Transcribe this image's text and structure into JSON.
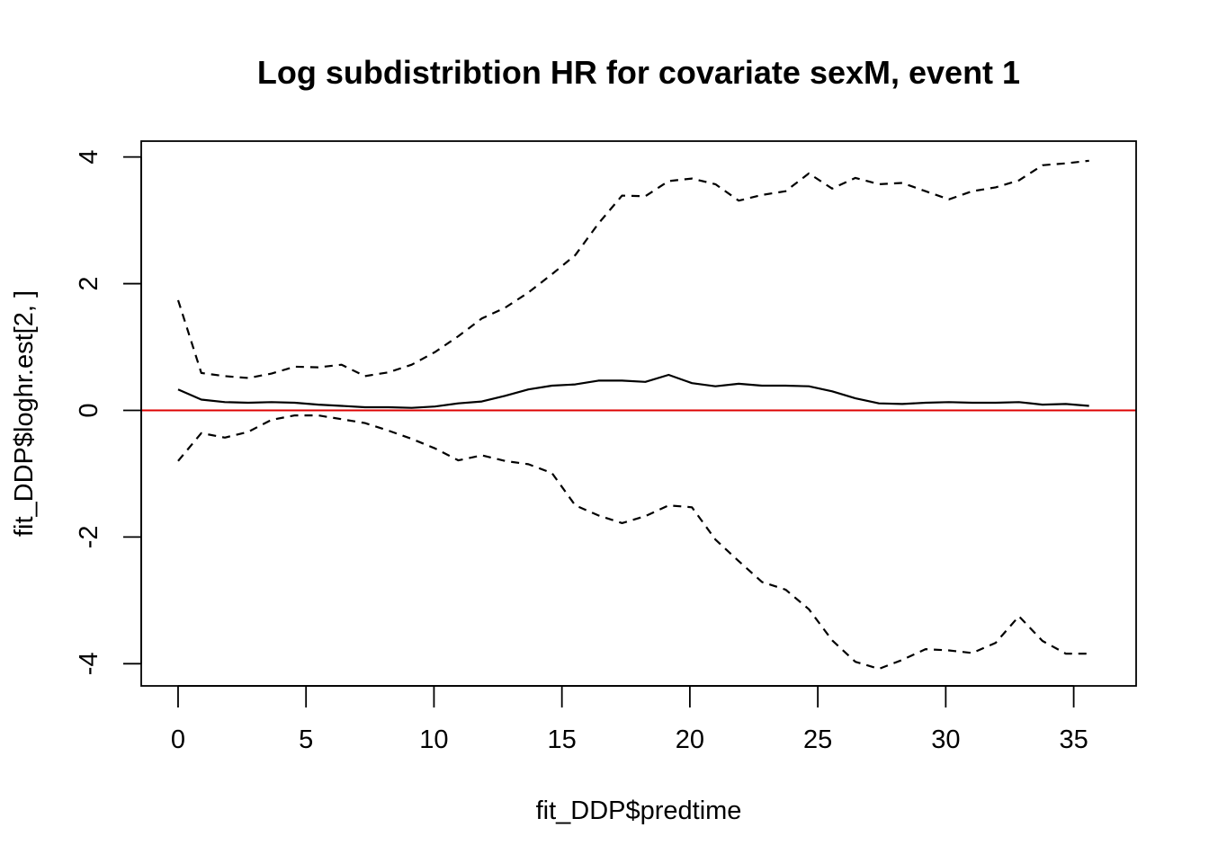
{
  "chart_data": {
    "type": "line",
    "title": "Log subdistribtion HR for covariate sexM, event 1",
    "xlabel": "fit_DDP$predtime",
    "ylabel": "fit_DDP$loghr.est[2, ]",
    "xlim": [
      -1.44,
      37.44
    ],
    "ylim": [
      -4.35,
      4.25
    ],
    "xticks": [
      0,
      5,
      10,
      15,
      20,
      25,
      30,
      35
    ],
    "yticks": [
      -4,
      -2,
      0,
      2,
      4
    ],
    "grid": false,
    "x": [
      0,
      0.91,
      1.83,
      2.74,
      3.65,
      4.56,
      5.48,
      6.39,
      7.3,
      8.22,
      9.13,
      10.04,
      10.95,
      11.87,
      12.78,
      13.69,
      14.61,
      15.52,
      16.43,
      17.35,
      18.26,
      19.17,
      20.08,
      21.0,
      21.91,
      22.82,
      23.74,
      24.65,
      25.56,
      26.47,
      27.39,
      28.3,
      29.21,
      30.12,
      31.04,
      31.95,
      32.86,
      33.78,
      34.69,
      35.6
    ],
    "series": [
      {
        "values": [
          0.33,
          0.17,
          0.13,
          0.12,
          0.13,
          0.12,
          0.09,
          0.07,
          0.05,
          0.05,
          0.04,
          0.06,
          0.11,
          0.14,
          0.23,
          0.33,
          0.39,
          0.41,
          0.47,
          0.47,
          0.45,
          0.56,
          0.43,
          0.38,
          0.42,
          0.39,
          0.39,
          0.38,
          0.3,
          0.19,
          0.11,
          0.1,
          0.12,
          0.13,
          0.12,
          0.12,
          0.13,
          0.09,
          0.1,
          0.07
        ],
        "style": "solid",
        "color": "#000000"
      },
      {
        "values": [
          1.74,
          0.59,
          0.54,
          0.51,
          0.58,
          0.69,
          0.68,
          0.72,
          0.54,
          0.6,
          0.72,
          0.92,
          1.17,
          1.45,
          1.62,
          1.86,
          2.15,
          2.45,
          2.95,
          3.39,
          3.38,
          3.62,
          3.66,
          3.57,
          3.31,
          3.4,
          3.46,
          3.74,
          3.5,
          3.67,
          3.57,
          3.59,
          3.46,
          3.33,
          3.46,
          3.52,
          3.63,
          3.87,
          3.9,
          3.94
        ],
        "style": "dashed",
        "color": "#000000"
      },
      {
        "values": [
          -0.8,
          -0.36,
          -0.43,
          -0.34,
          -0.15,
          -0.08,
          -0.08,
          -0.14,
          -0.2,
          -0.32,
          -0.45,
          -0.6,
          -0.79,
          -0.71,
          -0.8,
          -0.85,
          -0.99,
          -1.5,
          -1.66,
          -1.78,
          -1.67,
          -1.5,
          -1.53,
          -2.04,
          -2.38,
          -2.71,
          -2.83,
          -3.14,
          -3.63,
          -3.97,
          -4.08,
          -3.94,
          -3.77,
          -3.79,
          -3.83,
          -3.67,
          -3.25,
          -3.64,
          -3.84,
          -3.84
        ],
        "style": "dashed",
        "color": "#000000"
      }
    ],
    "reference_line": {
      "y": 0,
      "color": "#dd0000"
    }
  }
}
